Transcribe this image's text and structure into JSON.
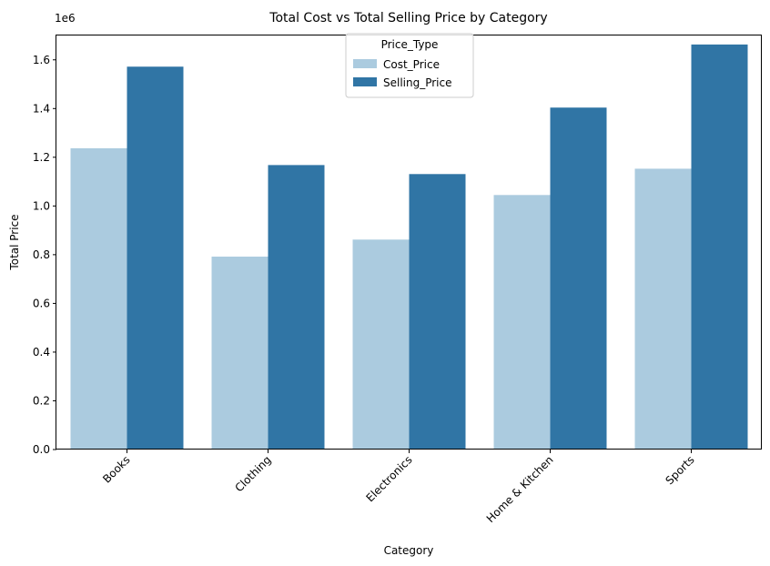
{
  "chart_data": {
    "type": "bar",
    "title": "Total Cost vs Total Selling Price by Category",
    "xlabel": "Category",
    "ylabel": "Total Price",
    "y_scale_label": "1e6",
    "y_multiplier": 1000000,
    "ylim": [
      0,
      1.7
    ],
    "yticks": [
      "0.0",
      "0.2",
      "0.4",
      "0.6",
      "0.8",
      "1.0",
      "1.2",
      "1.4",
      "1.6"
    ],
    "categories": [
      "Books",
      "Clothing",
      "Electronics",
      "Home & Kitchen",
      "Sports"
    ],
    "legend": {
      "title": "Price_Type",
      "placement": "upper-center"
    },
    "grid": false,
    "series": [
      {
        "name": "Cost_Price",
        "color": "#abcbdf",
        "values": [
          1.237,
          0.792,
          0.862,
          1.045,
          1.153
        ]
      },
      {
        "name": "Selling_Price",
        "color": "#3075a5",
        "values": [
          1.572,
          1.168,
          1.131,
          1.404,
          1.663
        ]
      }
    ]
  }
}
